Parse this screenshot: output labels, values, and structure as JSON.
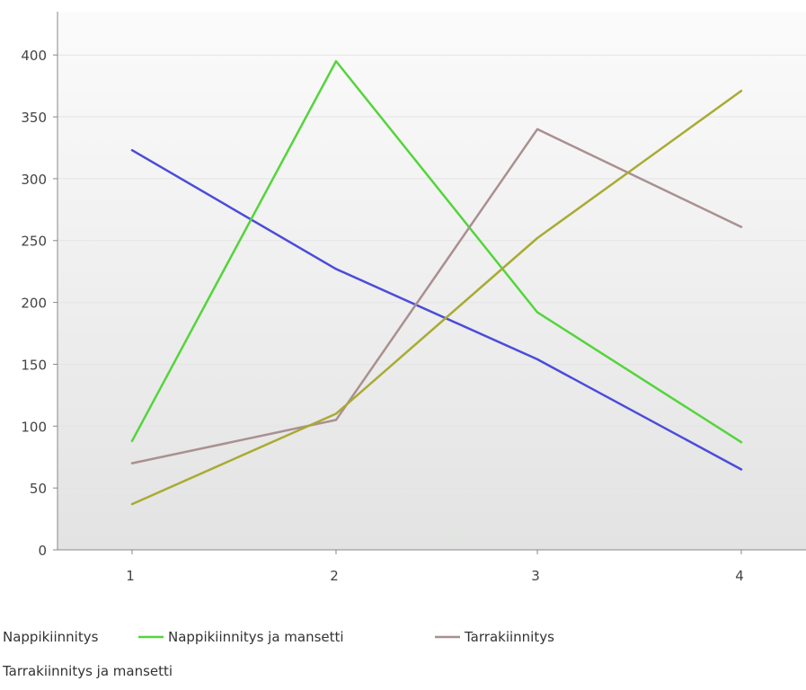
{
  "chart_data": {
    "type": "line",
    "x": [
      1,
      2,
      3,
      4
    ],
    "xticks": [
      "1",
      "2",
      "3",
      "4"
    ],
    "yticks": [
      "0",
      "50",
      "100",
      "150",
      "200",
      "250",
      "300",
      "350",
      "400"
    ],
    "ylim": [
      0,
      435
    ],
    "grid": true,
    "legend_position": "bottom",
    "series": [
      {
        "name": "Nappikiinnitys",
        "color": "#4b4bdc",
        "values": [
          323,
          227,
          154,
          65
        ]
      },
      {
        "name": "Nappikiinnitys ja mansetti",
        "color": "#55d43c",
        "values": [
          88,
          395,
          192,
          87
        ]
      },
      {
        "name": "Tarrakiinnitys",
        "color": "#aa9090",
        "values": [
          70,
          105,
          340,
          261
        ]
      },
      {
        "name": "Tarrakiinnitys ja mansetti",
        "color": "#aaaa33",
        "values": [
          37,
          110,
          252,
          371
        ]
      }
    ]
  }
}
